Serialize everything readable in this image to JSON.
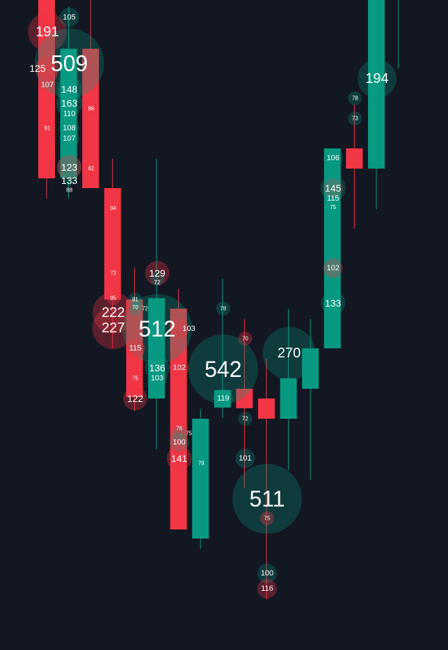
{
  "chart_data": {
    "type": "candlestick-with-volume-bubbles",
    "title": "",
    "xlabel": "",
    "ylabel": "",
    "grid": false,
    "legend": "none",
    "colors": {
      "background": "#131722",
      "up": "#089981",
      "down": "#f23645"
    },
    "candles": [
      {
        "o": 933,
        "h": 933,
        "l": 648,
        "c": 677
      },
      {
        "o": 678,
        "h": 923,
        "l": 648,
        "c": 863
      },
      {
        "o": 863,
        "h": 933,
        "l": 663,
        "c": 663
      },
      {
        "o": 663,
        "h": 705,
        "l": 433,
        "c": 503
      },
      {
        "o": 503,
        "h": 548,
        "l": 343,
        "c": 363
      },
      {
        "o": 361,
        "h": 705,
        "l": 288,
        "c": 505
      },
      {
        "o": 490,
        "h": 518,
        "l": 173,
        "c": 173
      },
      {
        "o": 160,
        "h": 346,
        "l": 145,
        "c": 332
      },
      {
        "o": 348,
        "h": 533,
        "l": 333,
        "c": 373
      },
      {
        "o": 375,
        "h": 475,
        "l": 233,
        "c": 347
      },
      {
        "o": 361,
        "h": 418,
        "l": 73,
        "c": 332
      },
      {
        "o": 332,
        "h": 490,
        "l": 258,
        "c": 390
      },
      {
        "o": 375,
        "h": 475,
        "l": 245,
        "c": 433
      },
      {
        "o": 433,
        "h": 720,
        "l": 433,
        "c": 720
      },
      {
        "o": 720,
        "h": 783,
        "l": 605,
        "c": 691
      },
      {
        "o": 691,
        "h": 933,
        "l": 633,
        "c": 933
      },
      {
        "o": 933,
        "h": 933,
        "l": 835,
        "c": 933
      }
    ],
    "bubbles": [
      {
        "i": 1,
        "price": 908,
        "value": 105,
        "side": "buy"
      },
      {
        "i": 0,
        "price": 887,
        "value": 191,
        "side": "sell"
      },
      {
        "i": 1,
        "price": 842,
        "value": 509,
        "side": "buy"
      },
      {
        "i": 0,
        "price": 835,
        "value": 125,
        "side": "sell"
      },
      {
        "i": 0,
        "price": 826,
        "value": 107,
        "side": "sell"
      },
      {
        "i": 1,
        "price": 805,
        "value": 148,
        "side": "buy"
      },
      {
        "i": 1,
        "price": 792,
        "value": 110,
        "side": "buy"
      },
      {
        "i": 1,
        "price": 785,
        "value": 163,
        "side": "buy"
      },
      {
        "i": 2,
        "price": 777,
        "value": 86,
        "side": "sell"
      },
      {
        "i": 0,
        "price": 749,
        "value": 91,
        "side": "sell"
      },
      {
        "i": 1,
        "price": 749,
        "value": 108,
        "side": "buy"
      },
      {
        "i": 1,
        "price": 734,
        "value": 107,
        "side": "buy"
      },
      {
        "i": 1,
        "price": 693,
        "value": 123,
        "side": "buy"
      },
      {
        "i": 1,
        "price": 693,
        "value": 133,
        "side": "sell"
      },
      {
        "i": 1,
        "price": 677,
        "value": 88,
        "side": "buy"
      },
      {
        "i": 2,
        "price": 691,
        "value": 82,
        "side": "sell"
      },
      {
        "i": 3,
        "price": 634,
        "value": 94,
        "side": "sell"
      },
      {
        "i": 3,
        "price": 541,
        "value": 72,
        "side": "sell"
      },
      {
        "i": 5,
        "price": 541,
        "value": 129,
        "side": "sell"
      },
      {
        "i": 5,
        "price": 533,
        "value": 72,
        "side": "buy"
      },
      {
        "i": 3,
        "price": 505,
        "value": 95,
        "side": "sell"
      },
      {
        "i": 4,
        "price": 503,
        "value": 81,
        "side": "buy"
      },
      {
        "i": 4,
        "price": 497,
        "value": 70,
        "side": "buy"
      },
      {
        "i": 4,
        "price": 490,
        "value": 72,
        "side": "buy"
      },
      {
        "i": 3,
        "price": 484,
        "value": 222,
        "side": "sell"
      },
      {
        "i": 3,
        "price": 462,
        "value": 227,
        "side": "sell"
      },
      {
        "i": 5,
        "price": 461,
        "value": 512,
        "side": "buy"
      },
      {
        "i": 6,
        "price": 461,
        "value": 103,
        "side": "sell"
      },
      {
        "i": 4,
        "price": 433,
        "value": 115,
        "side": "sell"
      },
      {
        "i": 5,
        "price": 405,
        "value": 136,
        "side": "buy"
      },
      {
        "i": 5,
        "price": 390,
        "value": 103,
        "side": "buy"
      },
      {
        "i": 6,
        "price": 405,
        "value": 102,
        "side": "sell"
      },
      {
        "i": 4,
        "price": 390,
        "value": 75,
        "side": "sell"
      },
      {
        "i": 4,
        "price": 361,
        "value": 122,
        "side": "sell"
      },
      {
        "i": 6,
        "price": 318,
        "value": 76,
        "side": "sell"
      },
      {
        "i": 6,
        "price": 311,
        "value": 75,
        "side": "buy"
      },
      {
        "i": 6,
        "price": 298,
        "value": 100,
        "side": "buy"
      },
      {
        "i": 6,
        "price": 275,
        "value": 141,
        "side": "sell"
      },
      {
        "i": 7,
        "price": 268,
        "value": 79,
        "side": "buy"
      },
      {
        "i": 8,
        "price": 490,
        "value": 78,
        "side": "buy"
      },
      {
        "i": 9,
        "price": 447,
        "value": 70,
        "side": "sell"
      },
      {
        "i": 8,
        "price": 403,
        "value": 542,
        "side": "buy"
      },
      {
        "i": 8,
        "price": 361,
        "value": 119,
        "side": "buy"
      },
      {
        "i": 9,
        "price": 332,
        "value": 72,
        "side": "buy"
      },
      {
        "i": 9,
        "price": 275,
        "value": 101,
        "side": "buy"
      },
      {
        "i": 11,
        "price": 426,
        "value": 270,
        "side": "buy"
      },
      {
        "i": 10,
        "price": 217,
        "value": 511,
        "side": "buy"
      },
      {
        "i": 10,
        "price": 189,
        "value": 75,
        "side": "sell"
      },
      {
        "i": 10,
        "price": 110,
        "value": 100,
        "side": "buy"
      },
      {
        "i": 10,
        "price": 88,
        "value": 116,
        "side": "sell"
      },
      {
        "i": 15,
        "price": 820,
        "value": 194,
        "side": "buy"
      },
      {
        "i": 14,
        "price": 792,
        "value": 78,
        "side": "buy"
      },
      {
        "i": 14,
        "price": 763,
        "value": 73,
        "side": "buy"
      },
      {
        "i": 13,
        "price": 706,
        "value": 106,
        "side": "buy"
      },
      {
        "i": 13,
        "price": 663,
        "value": 115,
        "side": "sell"
      },
      {
        "i": 13,
        "price": 663,
        "value": 145,
        "side": "buy"
      },
      {
        "i": 13,
        "price": 641,
        "value": 75,
        "side": "buy"
      },
      {
        "i": 13,
        "price": 548,
        "value": 102,
        "side": "sell"
      },
      {
        "i": 13,
        "price": 498,
        "value": 133,
        "side": "buy"
      }
    ]
  }
}
